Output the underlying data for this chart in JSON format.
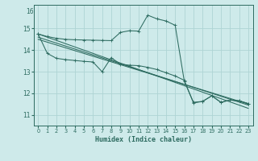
{
  "xlabel": "Humidex (Indice chaleur)",
  "bg_color": "#ceeaea",
  "grid_color": "#aed4d4",
  "line_color": "#2d6b60",
  "xlim": [
    -0.5,
    23.5
  ],
  "ylim": [
    10.5,
    16.1
  ],
  "yticks": [
    11,
    12,
    13,
    14,
    15
  ],
  "ytick_labels": [
    "11",
    "12",
    "13",
    "14",
    "15"
  ],
  "xticks": [
    0,
    1,
    2,
    3,
    4,
    5,
    6,
    7,
    8,
    9,
    10,
    11,
    12,
    13,
    14,
    15,
    16,
    17,
    18,
    19,
    20,
    21,
    22,
    23
  ],
  "series_upper_x": [
    0,
    1,
    2,
    3,
    4,
    5,
    6,
    7,
    8,
    9,
    10,
    11,
    12,
    13,
    14,
    15,
    16,
    17,
    18,
    19,
    20,
    21,
    22,
    23
  ],
  "series_upper_y": [
    14.75,
    14.63,
    14.55,
    14.5,
    14.48,
    14.47,
    14.46,
    14.45,
    14.44,
    14.82,
    14.9,
    14.88,
    15.62,
    15.45,
    15.35,
    15.15,
    12.55,
    11.58,
    11.62,
    11.88,
    11.58,
    11.68,
    11.65,
    11.52
  ],
  "series_lower_x": [
    0,
    1,
    2,
    3,
    4,
    5,
    6,
    7,
    8,
    9,
    10,
    11,
    12,
    13,
    14,
    15,
    16,
    17,
    18,
    19,
    20,
    21,
    22,
    23
  ],
  "series_lower_y": [
    14.75,
    13.85,
    13.62,
    13.56,
    13.52,
    13.48,
    13.45,
    13.0,
    13.65,
    13.35,
    13.3,
    13.28,
    13.2,
    13.1,
    12.95,
    12.8,
    12.6,
    11.55,
    11.62,
    11.88,
    11.58,
    11.68,
    11.65,
    11.52
  ],
  "trend1_x": [
    0,
    23
  ],
  "trend1_y": [
    14.75,
    11.3
  ],
  "trend2_x": [
    0,
    23
  ],
  "trend2_y": [
    14.6,
    11.45
  ],
  "trend3_x": [
    0,
    23
  ],
  "trend3_y": [
    14.5,
    11.5
  ]
}
